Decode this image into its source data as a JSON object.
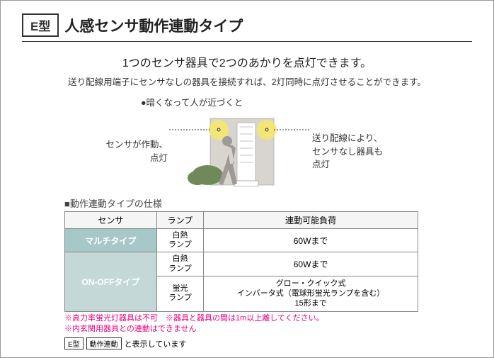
{
  "header": {
    "type_badge": "E型",
    "title": "人感センサ動作連動タイプ"
  },
  "lead": {
    "main": "1つのセンサ器具で2つのあかりを点灯できます。",
    "sub": "送り配線用端子にセンサなしの器具を接続すれば、2灯同時に点灯させることができます。"
  },
  "diagram": {
    "caption": "●暗くなって人が近づくと",
    "left_label_1": "センサが作動、",
    "left_label_2": "点灯",
    "right_label_1": "送り配線により、",
    "right_label_2": "センサなし器具も",
    "right_label_3": "点灯",
    "glow_color": "#f7e96a",
    "door_fill": "#d8d5cf",
    "person_fill": "#9e9b96",
    "bush_fill": "#6f8a5a"
  },
  "spec": {
    "title": "■動作連動タイプの仕様",
    "headers": {
      "sensor": "センサ",
      "lamp": "ランプ",
      "load": "連動可能負荷"
    },
    "rows": [
      {
        "sensor": "マルチタイプ",
        "lamp": "白熱\nランプ",
        "load": "60Wまで"
      },
      {
        "sensor": "ON-OFFタイプ",
        "lamp": "白熱\nランプ",
        "load": "60Wまで"
      },
      {
        "sensor": "ON-OFFタイプ",
        "lamp": "蛍光\nランプ",
        "load": "グロー・クイック式\nインバータ式（電球形蛍光ランプを含む）\n15形まで"
      }
    ]
  },
  "notes": {
    "line1": "※高力率蛍光灯器具は不可　※器具と器具の間は1m以上離してください。",
    "line2": "※内玄関用器具との連動はできません"
  },
  "footer": {
    "badge1": "E型",
    "badge2": "動作連動",
    "text": "と表示しています"
  }
}
